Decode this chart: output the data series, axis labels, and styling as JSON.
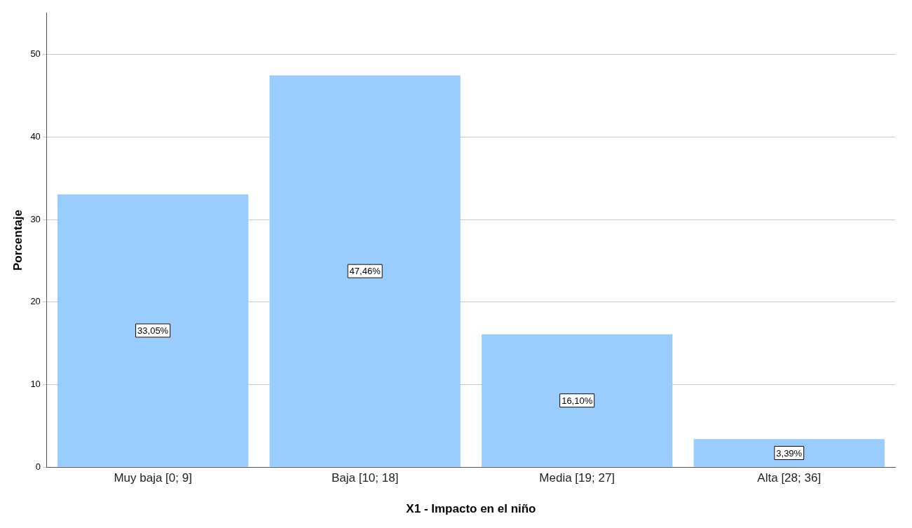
{
  "chart_data": {
    "type": "bar",
    "xlabel": "X1 - Impacto en el niño",
    "ylabel": "Porcentaje",
    "categories": [
      "Muy baja [0; 9]",
      "Baja [10; 18]",
      "Media [19; 27]",
      "Alta [28; 36]"
    ],
    "values": [
      33.05,
      47.46,
      16.1,
      3.39
    ],
    "value_labels": [
      "33,05%",
      "47,46%",
      "16,10%",
      "3,39%"
    ],
    "color": "#99ccff",
    "ylim": [
      0,
      55
    ],
    "yticks": [
      0,
      10,
      20,
      30,
      40,
      50
    ],
    "grid": "y"
  }
}
